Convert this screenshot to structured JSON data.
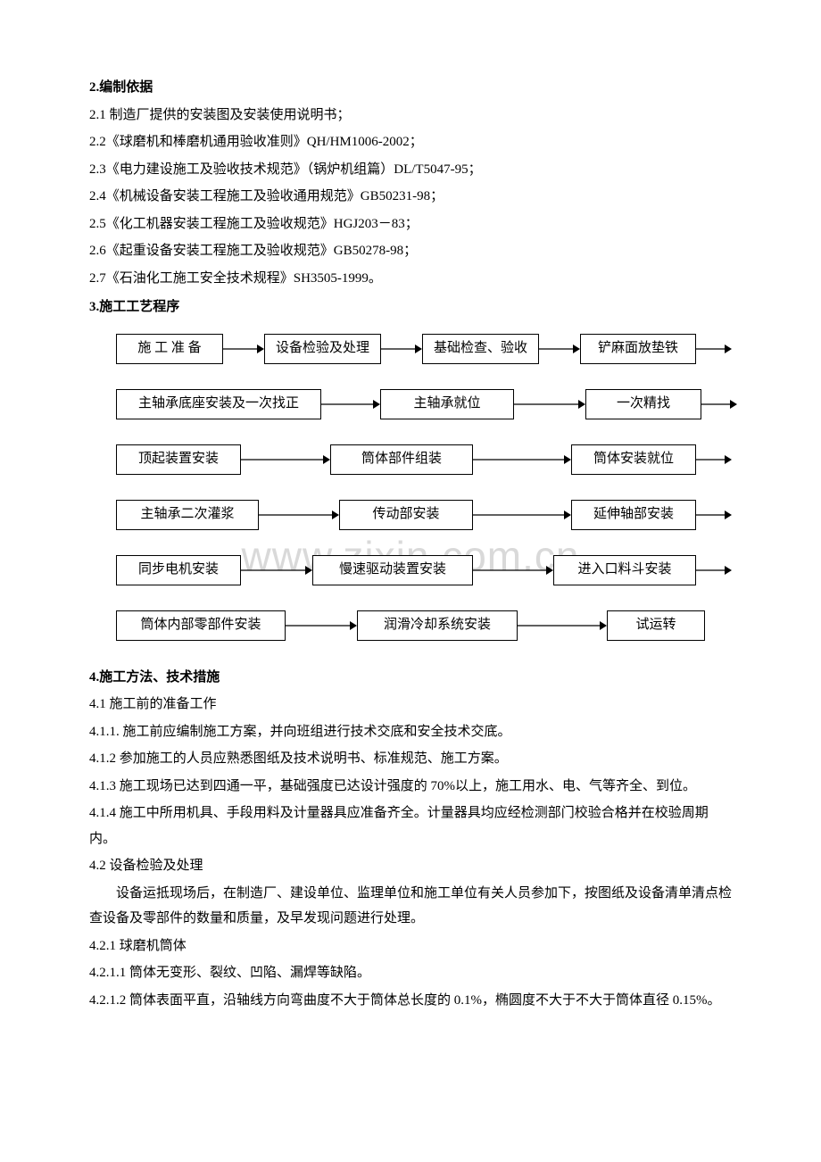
{
  "watermark": "www.zixin.com.cn",
  "section2": {
    "heading": "2.编制依据",
    "items": [
      "2.1 制造厂提供的安装图及安装使用说明书；",
      "2.2《球磨机和棒磨机通用验收准则》QH/HM1006-2002；",
      "2.3《电力建设施工及验收技术规范》（锅炉机组篇）DL/T5047-95；",
      "2.4《机械设备安装工程施工及验收通用规范》GB50231-98；",
      "2.5《化工机器安装工程施工及验收规范》HGJ203－83；",
      "2.6《起重设备安装工程施工及验收规范》GB50278-98；",
      "2.7《石油化工施工安全技术规程》SH3505-1999。"
    ]
  },
  "section3": {
    "heading": "3.施工工艺程序",
    "flow": {
      "rows": [
        {
          "boxes": [
            "施 工 准 备",
            "设备检验及处理",
            "基础检查、验收",
            "铲麻面放垫铁"
          ],
          "trailing": true,
          "widths": [
            120,
            130,
            130,
            130
          ],
          "arrows": [
            46,
            46,
            46,
            40
          ]
        },
        {
          "boxes": [
            "主轴承底座安装及一次找正",
            "主轴承就位",
            "一次精找"
          ],
          "trailing": true,
          "widths": [
            230,
            150,
            130
          ],
          "arrows": [
            66,
            80,
            40
          ]
        },
        {
          "boxes": [
            "顶起装置安装",
            "筒体部件组装",
            "筒体安装就位"
          ],
          "trailing": true,
          "widths": [
            140,
            160,
            140
          ],
          "arrows": [
            100,
            110,
            40
          ]
        },
        {
          "boxes": [
            "主轴承二次灌浆",
            "传动部安装",
            "延伸轴部安装"
          ],
          "trailing": true,
          "widths": [
            160,
            150,
            140
          ],
          "arrows": [
            90,
            110,
            40
          ]
        },
        {
          "boxes": [
            "同步电机安装",
            "慢速驱动装置安装",
            "进入口料斗安装"
          ],
          "trailing": true,
          "widths": [
            140,
            180,
            160
          ],
          "arrows": [
            80,
            90,
            40
          ]
        },
        {
          "boxes": [
            "筒体内部零部件安装",
            "润滑冷却系统安装",
            "试运转"
          ],
          "trailing": false,
          "widths": [
            190,
            180,
            110
          ],
          "arrows": [
            80,
            100
          ]
        }
      ]
    }
  },
  "section4": {
    "heading": "4.施工方法、技术措施",
    "p41": "4.1 施工前的准备工作",
    "p411": "4.1.1. 施工前应编制施工方案，并向班组进行技术交底和安全技术交底。",
    "p412": "4.1.2 参加施工的人员应熟悉图纸及技术说明书、标准规范、施工方案。",
    "p413": "4.1.3 施工现场已达到四通一平，基础强度已达设计强度的 70%以上，施工用水、电、气等齐全、到位。",
    "p414": "4.1.4 施工中所用机具、手段用料及计量器具应准备齐全。计量器具均应经检测部门校验合格并在校验周期内。",
    "p42": "4.2 设备检验及处理",
    "p42body": "设备运抵现场后，在制造厂、建设单位、监理单位和施工单位有关人员参加下，按图纸及设备清单清点检查设备及零部件的数量和质量，及早发现问题进行处理。",
    "p421": "4.2.1 球磨机筒体",
    "p4211": "4.2.1.1 筒体无变形、裂纹、凹陷、漏焊等缺陷。",
    "p4212": "4.2.1.2 筒体表面平直，沿轴线方向弯曲度不大于筒体总长度的 0.1%，椭圆度不大于不大于筒体直径 0.15%。"
  },
  "style": {
    "background": "#ffffff",
    "text_color": "#000000",
    "watermark_color": "#d9d9d9",
    "font_size_body": 15,
    "font_size_watermark": 46,
    "box_border_color": "#000000"
  }
}
